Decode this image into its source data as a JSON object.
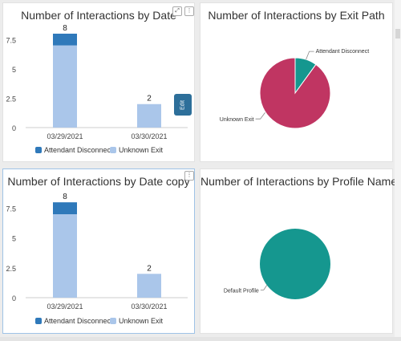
{
  "colors": {
    "attendant": "#2f79ba",
    "unknown": "#aac6ea",
    "pie_unknown": "#c03562",
    "pie_teal": "#15978f",
    "axis_text": "#444444",
    "grid": "#e6e6e6"
  },
  "toolbar": {
    "expand_icon": "expand-icon",
    "menu_icon": "menu-icon",
    "edit_label": "Edit"
  },
  "panels": [
    {
      "title": "Number of Interactions by Date",
      "legend": [
        "Attendant Disconnect",
        "Unknown Exit"
      ],
      "y_ticks": [
        "0",
        "2.5",
        "5",
        "7.5"
      ]
    },
    {
      "title": "Number of Interactions by Exit Path"
    },
    {
      "title": "Number of Interactions by Date copy",
      "legend": [
        "Attendant Disconnect",
        "Unknown Exit"
      ],
      "y_ticks": [
        "0",
        "2.5",
        "5",
        "7.5"
      ]
    },
    {
      "title": "Number of Interactions by Profile Name"
    }
  ],
  "chart_data": [
    {
      "type": "bar",
      "title": "Number of Interactions by Date",
      "categories": [
        "03/29/2021",
        "03/30/2021"
      ],
      "series": [
        {
          "name": "Attendant Disconnect",
          "values": [
            1,
            0
          ]
        },
        {
          "name": "Unknown Exit",
          "values": [
            7,
            2
          ]
        }
      ],
      "totals": [
        "8",
        "2"
      ],
      "stacked": true,
      "ylim": [
        0,
        8.75
      ],
      "yticks": [
        0,
        2.5,
        5,
        7.5
      ],
      "legend": "bottom",
      "grid": false
    },
    {
      "type": "pie",
      "title": "Number of Interactions by Exit Path",
      "labels": [
        "Attendant Disconnect",
        "Unknown Exit"
      ],
      "values": [
        1,
        9
      ]
    },
    {
      "type": "bar",
      "title": "Number of Interactions by Date copy",
      "categories": [
        "03/29/2021",
        "03/30/2021"
      ],
      "series": [
        {
          "name": "Attendant Disconnect",
          "values": [
            1,
            0
          ]
        },
        {
          "name": "Unknown Exit",
          "values": [
            7,
            2
          ]
        }
      ],
      "totals": [
        "8",
        "2"
      ],
      "stacked": true,
      "ylim": [
        0,
        8.75
      ],
      "yticks": [
        0,
        2.5,
        5,
        7.5
      ],
      "legend": "bottom",
      "grid": false
    },
    {
      "type": "pie",
      "title": "Number of Interactions by Profile Name",
      "labels": [
        "Default Profile"
      ],
      "values": [
        1
      ]
    }
  ]
}
